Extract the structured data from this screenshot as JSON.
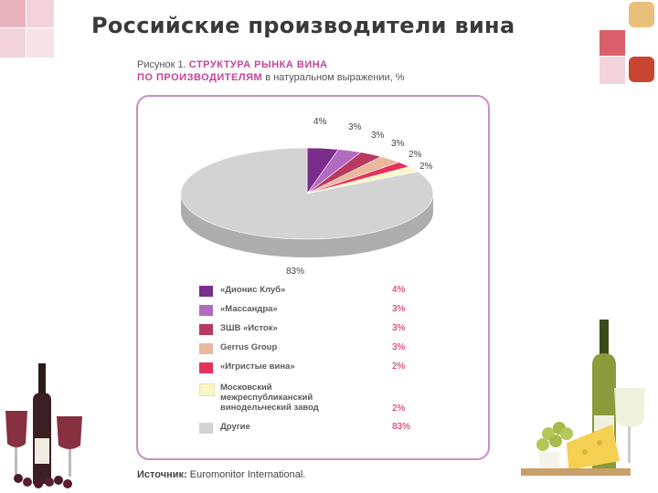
{
  "title": "Российские производители вина",
  "caption": {
    "prefix": "Рисунок 1.",
    "heading_line1": "СТРУКТУРА РЫНКА ВИНА",
    "heading_line2": "ПО ПРОИЗВОДИТЕЛЯМ",
    "unit_text": "в натуральном выражении, %"
  },
  "source": {
    "label": "Источник:",
    "text": "Euromonitor International."
  },
  "colors": {
    "accent_pink": "#c2469a",
    "frame": "#c98fc0",
    "value_red": "#d0204f"
  },
  "chart_data": {
    "type": "pie",
    "style": "3d",
    "series": [
      {
        "name": "«Дионис Клуб»",
        "value": 4,
        "label": "4%",
        "color": "#7b2d8b"
      },
      {
        "name": "«Массандра»",
        "value": 3,
        "label": "3%",
        "color": "#b36ac2"
      },
      {
        "name": "ЗШВ «Исток»",
        "value": 3,
        "label": "3%",
        "color": "#b83a5e"
      },
      {
        "name": "Gerrus Group",
        "value": 3,
        "label": "3%",
        "color": "#e9b89e"
      },
      {
        "name": "«Игристые вина»",
        "value": 2,
        "label": "2%",
        "color": "#e4335a"
      },
      {
        "name": "Московский межреспубликанский винодельческий завод",
        "value": 2,
        "label": "2%",
        "color": "#fbf6c8"
      },
      {
        "name": "Другие",
        "value": 83,
        "label": "83%",
        "color": "#d3d3d3"
      }
    ]
  }
}
